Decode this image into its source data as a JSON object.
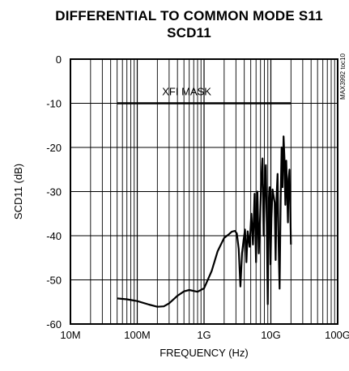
{
  "chart_data": {
    "type": "line",
    "title": "DIFFERENTIAL TO COMMON MODE S11",
    "subtitle": "SCD11",
    "xlabel": "FREQUENCY (Hz)",
    "ylabel": "SCD11 (dB)",
    "x_scale": "log",
    "xlim": [
      10000000,
      100000000000
    ],
    "ylim": [
      -60,
      0
    ],
    "x_ticks": [
      {
        "value": 10000000,
        "label": "10M"
      },
      {
        "value": 100000000,
        "label": "100M"
      },
      {
        "value": 1000000000,
        "label": "1G"
      },
      {
        "value": 10000000000,
        "label": "10G"
      },
      {
        "value": 100000000000,
        "label": "100G"
      }
    ],
    "y_ticks": [
      {
        "value": 0,
        "label": "0"
      },
      {
        "value": -10,
        "label": "-10"
      },
      {
        "value": -20,
        "label": "-20"
      },
      {
        "value": -30,
        "label": "-30"
      },
      {
        "value": -40,
        "label": "-40"
      },
      {
        "value": -50,
        "label": "-50"
      },
      {
        "value": -60,
        "label": "-60"
      }
    ],
    "grid": true,
    "annotations": [
      {
        "text": "XFI MASK",
        "x": 550000000,
        "y": -8.2
      },
      {
        "text": "MAX3992 toc10"
      }
    ],
    "series": [
      {
        "name": "XFI MASK",
        "x": [
          50000000,
          20000000000
        ],
        "y": [
          -10,
          -10
        ]
      },
      {
        "name": "",
        "x": [
          50000000,
          70000000,
          100000000,
          150000000,
          200000000,
          250000000,
          300000000,
          400000000,
          500000000,
          600000000,
          800000000,
          1000000000,
          1300000000,
          1600000000,
          2000000000,
          2300000000,
          2600000000,
          2900000000,
          3100000000,
          3300000000,
          3500000000,
          3700000000,
          3900000000,
          4100000000,
          4300000000,
          4500000000,
          4800000000,
          5100000000,
          5400000000,
          5700000000,
          6000000000,
          6300000000,
          6600000000,
          6900000000,
          7200000000,
          7500000000,
          7800000000,
          8100000000,
          8400000000,
          8700000000,
          9000000000,
          9300000000,
          9600000000,
          9900000000,
          10200000000,
          10600000000,
          11000000000,
          11400000000,
          11800000000,
          12200000000,
          12600000000,
          13000000000,
          13500000000,
          14000000000,
          14500000000,
          15000000000,
          15500000000,
          16000000000,
          16500000000,
          17000000000,
          17500000000,
          18000000000,
          18500000000,
          19000000000,
          19500000000,
          20000000000
        ],
        "y": [
          -54.2,
          -54.4,
          -54.8,
          -55.6,
          -56.1,
          -56.0,
          -55.3,
          -53.6,
          -52.6,
          -52.3,
          -52.7,
          -51.9,
          -48.0,
          -43.5,
          -40.5,
          -39.8,
          -39.1,
          -38.9,
          -39.5,
          -43.0,
          -51.5,
          -44.0,
          -41.0,
          -38.6,
          -46.0,
          -39.0,
          -42.5,
          -35.0,
          -42.0,
          -30.5,
          -46.0,
          -30.0,
          -44.0,
          -36.0,
          -27.0,
          -22.5,
          -40.0,
          -28.5,
          -24.0,
          -38.0,
          -55.5,
          -32.0,
          -29.0,
          -46.5,
          -36.0,
          -29.5,
          -31.0,
          -32.5,
          -45.5,
          -31.0,
          -26.0,
          -40.5,
          -52.0,
          -32.0,
          -20.0,
          -29.0,
          -17.5,
          -22.5,
          -33.0,
          -23.0,
          -30.0,
          -37.0,
          -27.0,
          -25.0,
          -33.0,
          -42.0
        ]
      }
    ]
  }
}
